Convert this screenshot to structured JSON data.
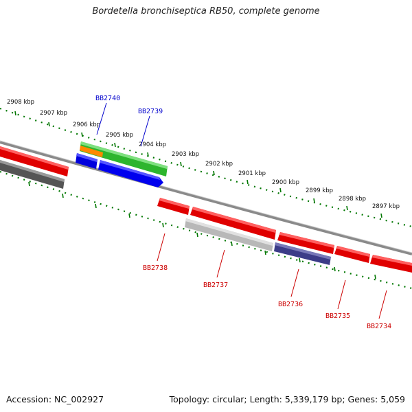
{
  "title": "Bordetella bronchiseptica RB50, complete genome",
  "accession": "Accession: NC_002927",
  "summary": "Topology: circular; Length: 5,339,179 bp; Genes: 5,059",
  "scale": [
    "2908 kbp",
    "2907 kbp",
    "2906 kbp",
    "2905 kbp",
    "2904 kbp",
    "2903 kbp",
    "2902 kbp",
    "2901 kbp",
    "2900 kbp",
    "2899 kbp",
    "2898 kbp",
    "2897 kbp"
  ],
  "genes_top": [
    "BB2740",
    "BB2739"
  ],
  "genes_bottom": [
    "BB2738",
    "BB2737",
    "BB2736",
    "BB2735",
    "BB2734"
  ],
  "colors": {
    "backbone": "#808080",
    "red": "#ff0000",
    "green": "#33cc33",
    "orange": "#ff8800",
    "blue": "#0000ee",
    "gray_dark": "#555555",
    "gray_light": "#bbbbbb",
    "navy": "#404080",
    "ticks": "#007700"
  }
}
